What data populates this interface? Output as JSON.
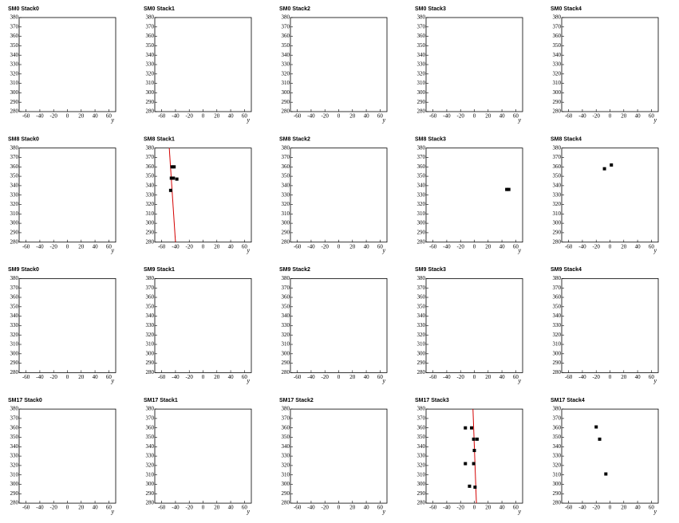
{
  "chart_data": [
    {
      "type": "scatter",
      "title": "SM0 Stack0",
      "xlabel": "y",
      "xlim": [
        -70,
        70
      ],
      "ylim": [
        280,
        380
      ],
      "xticks": [
        -60,
        -40,
        -20,
        0,
        20,
        40,
        60
      ],
      "yticks": [
        280,
        290,
        300,
        310,
        320,
        330,
        340,
        350,
        360,
        370,
        380
      ]
    },
    {
      "type": "scatter",
      "title": "SM0 Stack1",
      "xlabel": "y",
      "xlim": [
        -70,
        70
      ],
      "ylim": [
        280,
        380
      ],
      "xticks": [
        -60,
        -40,
        -20,
        0,
        20,
        40,
        60
      ],
      "yticks": [
        280,
        290,
        300,
        310,
        320,
        330,
        340,
        350,
        360,
        370,
        380
      ]
    },
    {
      "type": "scatter",
      "title": "SM0 Stack2",
      "xlabel": "y",
      "xlim": [
        -70,
        70
      ],
      "ylim": [
        280,
        380
      ],
      "xticks": [
        -60,
        -40,
        -20,
        0,
        20,
        40,
        60
      ],
      "yticks": [
        280,
        290,
        300,
        310,
        320,
        330,
        340,
        350,
        360,
        370,
        380
      ]
    },
    {
      "type": "scatter",
      "title": "SM0 Stack3",
      "xlabel": "y",
      "xlim": [
        -70,
        70
      ],
      "ylim": [
        280,
        380
      ],
      "xticks": [
        -60,
        -40,
        -20,
        0,
        20,
        40,
        60
      ],
      "yticks": [
        280,
        290,
        300,
        310,
        320,
        330,
        340,
        350,
        360,
        370,
        380
      ]
    },
    {
      "type": "scatter",
      "title": "SM0 Stack4",
      "xlabel": "y",
      "xlim": [
        -70,
        70
      ],
      "ylim": [
        280,
        380
      ],
      "xticks": [
        -60,
        -40,
        -20,
        0,
        20,
        40,
        60
      ],
      "yticks": [
        280,
        290,
        300,
        310,
        320,
        330,
        340,
        350,
        360,
        370,
        380
      ]
    },
    {
      "type": "scatter",
      "title": "SM8 Stack0",
      "xlabel": "y",
      "xlim": [
        -70,
        70
      ],
      "ylim": [
        280,
        380
      ],
      "xticks": [
        -60,
        -40,
        -20,
        0,
        20,
        40,
        60
      ],
      "yticks": [
        280,
        290,
        300,
        310,
        320,
        330,
        340,
        350,
        360,
        370,
        380
      ]
    },
    {
      "type": "scatter",
      "title": "SM8 Stack1",
      "xlabel": "y",
      "xlim": [
        -70,
        70
      ],
      "ylim": [
        280,
        380
      ],
      "xticks": [
        -60,
        -40,
        -20,
        0,
        20,
        40,
        60
      ],
      "yticks": [
        280,
        290,
        300,
        310,
        320,
        330,
        340,
        350,
        360,
        370,
        380
      ],
      "color": "#000000",
      "points": {
        "x": [
          -45,
          -42,
          -46,
          -43,
          -38,
          -47
        ],
        "y": [
          360,
          360,
          348,
          348,
          347,
          335
        ]
      },
      "fit": {
        "color": "#d40000",
        "x": [
          -49,
          -40
        ],
        "y": [
          380,
          280
        ]
      }
    },
    {
      "type": "scatter",
      "title": "SM8 Stack2",
      "xlabel": "y",
      "xlim": [
        -70,
        70
      ],
      "ylim": [
        280,
        380
      ],
      "xticks": [
        -60,
        -40,
        -20,
        0,
        20,
        40,
        60
      ],
      "yticks": [
        280,
        290,
        300,
        310,
        320,
        330,
        340,
        350,
        360,
        370,
        380
      ]
    },
    {
      "type": "scatter",
      "title": "SM8 Stack3",
      "xlabel": "y",
      "xlim": [
        -70,
        70
      ],
      "ylim": [
        280,
        380
      ],
      "xticks": [
        -60,
        -40,
        -20,
        0,
        20,
        40,
        60
      ],
      "yticks": [
        280,
        290,
        300,
        310,
        320,
        330,
        340,
        350,
        360,
        370,
        380
      ],
      "color": "#000000",
      "points": {
        "x": [
          47,
          50
        ],
        "y": [
          336,
          336
        ]
      }
    },
    {
      "type": "scatter",
      "title": "SM8 Stack4",
      "xlabel": "y",
      "xlim": [
        -70,
        70
      ],
      "ylim": [
        280,
        380
      ],
      "xticks": [
        -60,
        -40,
        -20,
        0,
        20,
        40,
        60
      ],
      "yticks": [
        280,
        290,
        300,
        310,
        320,
        330,
        340,
        350,
        360,
        370,
        380
      ],
      "color": "#000000",
      "points": {
        "x": [
          -8,
          2
        ],
        "y": [
          358,
          362
        ]
      }
    },
    {
      "type": "scatter",
      "title": "SM9 Stack0",
      "xlabel": "y",
      "xlim": [
        -70,
        70
      ],
      "ylim": [
        280,
        380
      ],
      "xticks": [
        -60,
        -40,
        -20,
        0,
        20,
        40,
        60
      ],
      "yticks": [
        280,
        290,
        300,
        310,
        320,
        330,
        340,
        350,
        360,
        370,
        380
      ]
    },
    {
      "type": "scatter",
      "title": "SM9 Stack1",
      "xlabel": "y",
      "xlim": [
        -70,
        70
      ],
      "ylim": [
        280,
        380
      ],
      "xticks": [
        -60,
        -40,
        -20,
        0,
        20,
        40,
        60
      ],
      "yticks": [
        280,
        290,
        300,
        310,
        320,
        330,
        340,
        350,
        360,
        370,
        380
      ]
    },
    {
      "type": "scatter",
      "title": "SM9 Stack2",
      "xlabel": "y",
      "xlim": [
        -70,
        70
      ],
      "ylim": [
        280,
        380
      ],
      "xticks": [
        -60,
        -40,
        -20,
        0,
        20,
        40,
        60
      ],
      "yticks": [
        280,
        290,
        300,
        310,
        320,
        330,
        340,
        350,
        360,
        370,
        380
      ]
    },
    {
      "type": "scatter",
      "title": "SM9 Stack3",
      "xlabel": "y",
      "xlim": [
        -70,
        70
      ],
      "ylim": [
        280,
        380
      ],
      "xticks": [
        -60,
        -40,
        -20,
        0,
        20,
        40,
        60
      ],
      "yticks": [
        280,
        290,
        300,
        310,
        320,
        330,
        340,
        350,
        360,
        370,
        380
      ]
    },
    {
      "type": "scatter",
      "title": "SM9 Stack4",
      "xlabel": "y",
      "xlim": [
        -70,
        70
      ],
      "ylim": [
        280,
        380
      ],
      "xticks": [
        -60,
        -40,
        -20,
        0,
        20,
        40,
        60
      ],
      "yticks": [
        280,
        290,
        300,
        310,
        320,
        330,
        340,
        350,
        360,
        370,
        380
      ]
    },
    {
      "type": "scatter",
      "title": "SM17 Stack0",
      "xlabel": "y",
      "xlim": [
        -70,
        70
      ],
      "ylim": [
        280,
        380
      ],
      "xticks": [
        -60,
        -40,
        -20,
        0,
        20,
        40,
        60
      ],
      "yticks": [
        280,
        290,
        300,
        310,
        320,
        330,
        340,
        350,
        360,
        370,
        380
      ]
    },
    {
      "type": "scatter",
      "title": "SM17 Stack1",
      "xlabel": "y",
      "xlim": [
        -70,
        70
      ],
      "ylim": [
        280,
        380
      ],
      "xticks": [
        -60,
        -40,
        -20,
        0,
        20,
        40,
        60
      ],
      "yticks": [
        280,
        290,
        300,
        310,
        320,
        330,
        340,
        350,
        360,
        370,
        380
      ]
    },
    {
      "type": "scatter",
      "title": "SM17 Stack2",
      "xlabel": "y",
      "xlim": [
        -70,
        70
      ],
      "ylim": [
        280,
        380
      ],
      "xticks": [
        -60,
        -40,
        -20,
        0,
        20,
        40,
        60
      ],
      "yticks": [
        280,
        290,
        300,
        310,
        320,
        330,
        340,
        350,
        360,
        370,
        380
      ]
    },
    {
      "type": "scatter",
      "title": "SM17 Stack3",
      "xlabel": "y",
      "xlim": [
        -70,
        70
      ],
      "ylim": [
        280,
        380
      ],
      "xticks": [
        -60,
        -40,
        -20,
        0,
        20,
        40,
        60
      ],
      "yticks": [
        280,
        290,
        300,
        310,
        320,
        330,
        340,
        350,
        360,
        370,
        380
      ],
      "color": "#000000",
      "points": {
        "x": [
          -13,
          -4,
          -1,
          4,
          0,
          -1,
          -13,
          -7,
          1
        ],
        "y": [
          360,
          360,
          348,
          348,
          336,
          322,
          322,
          298,
          297
        ]
      },
      "fit": {
        "color": "#d40000",
        "x": [
          -2,
          3
        ],
        "y": [
          380,
          280
        ]
      }
    },
    {
      "type": "scatter",
      "title": "SM17 Stack4",
      "xlabel": "y",
      "xlim": [
        -70,
        70
      ],
      "ylim": [
        280,
        380
      ],
      "xticks": [
        -60,
        -40,
        -20,
        0,
        20,
        40,
        60
      ],
      "yticks": [
        280,
        290,
        300,
        310,
        320,
        330,
        340,
        350,
        360,
        370,
        380
      ],
      "color": "#000000",
      "points": {
        "x": [
          -20,
          -15,
          -6
        ],
        "y": [
          361,
          348,
          311
        ]
      }
    }
  ]
}
